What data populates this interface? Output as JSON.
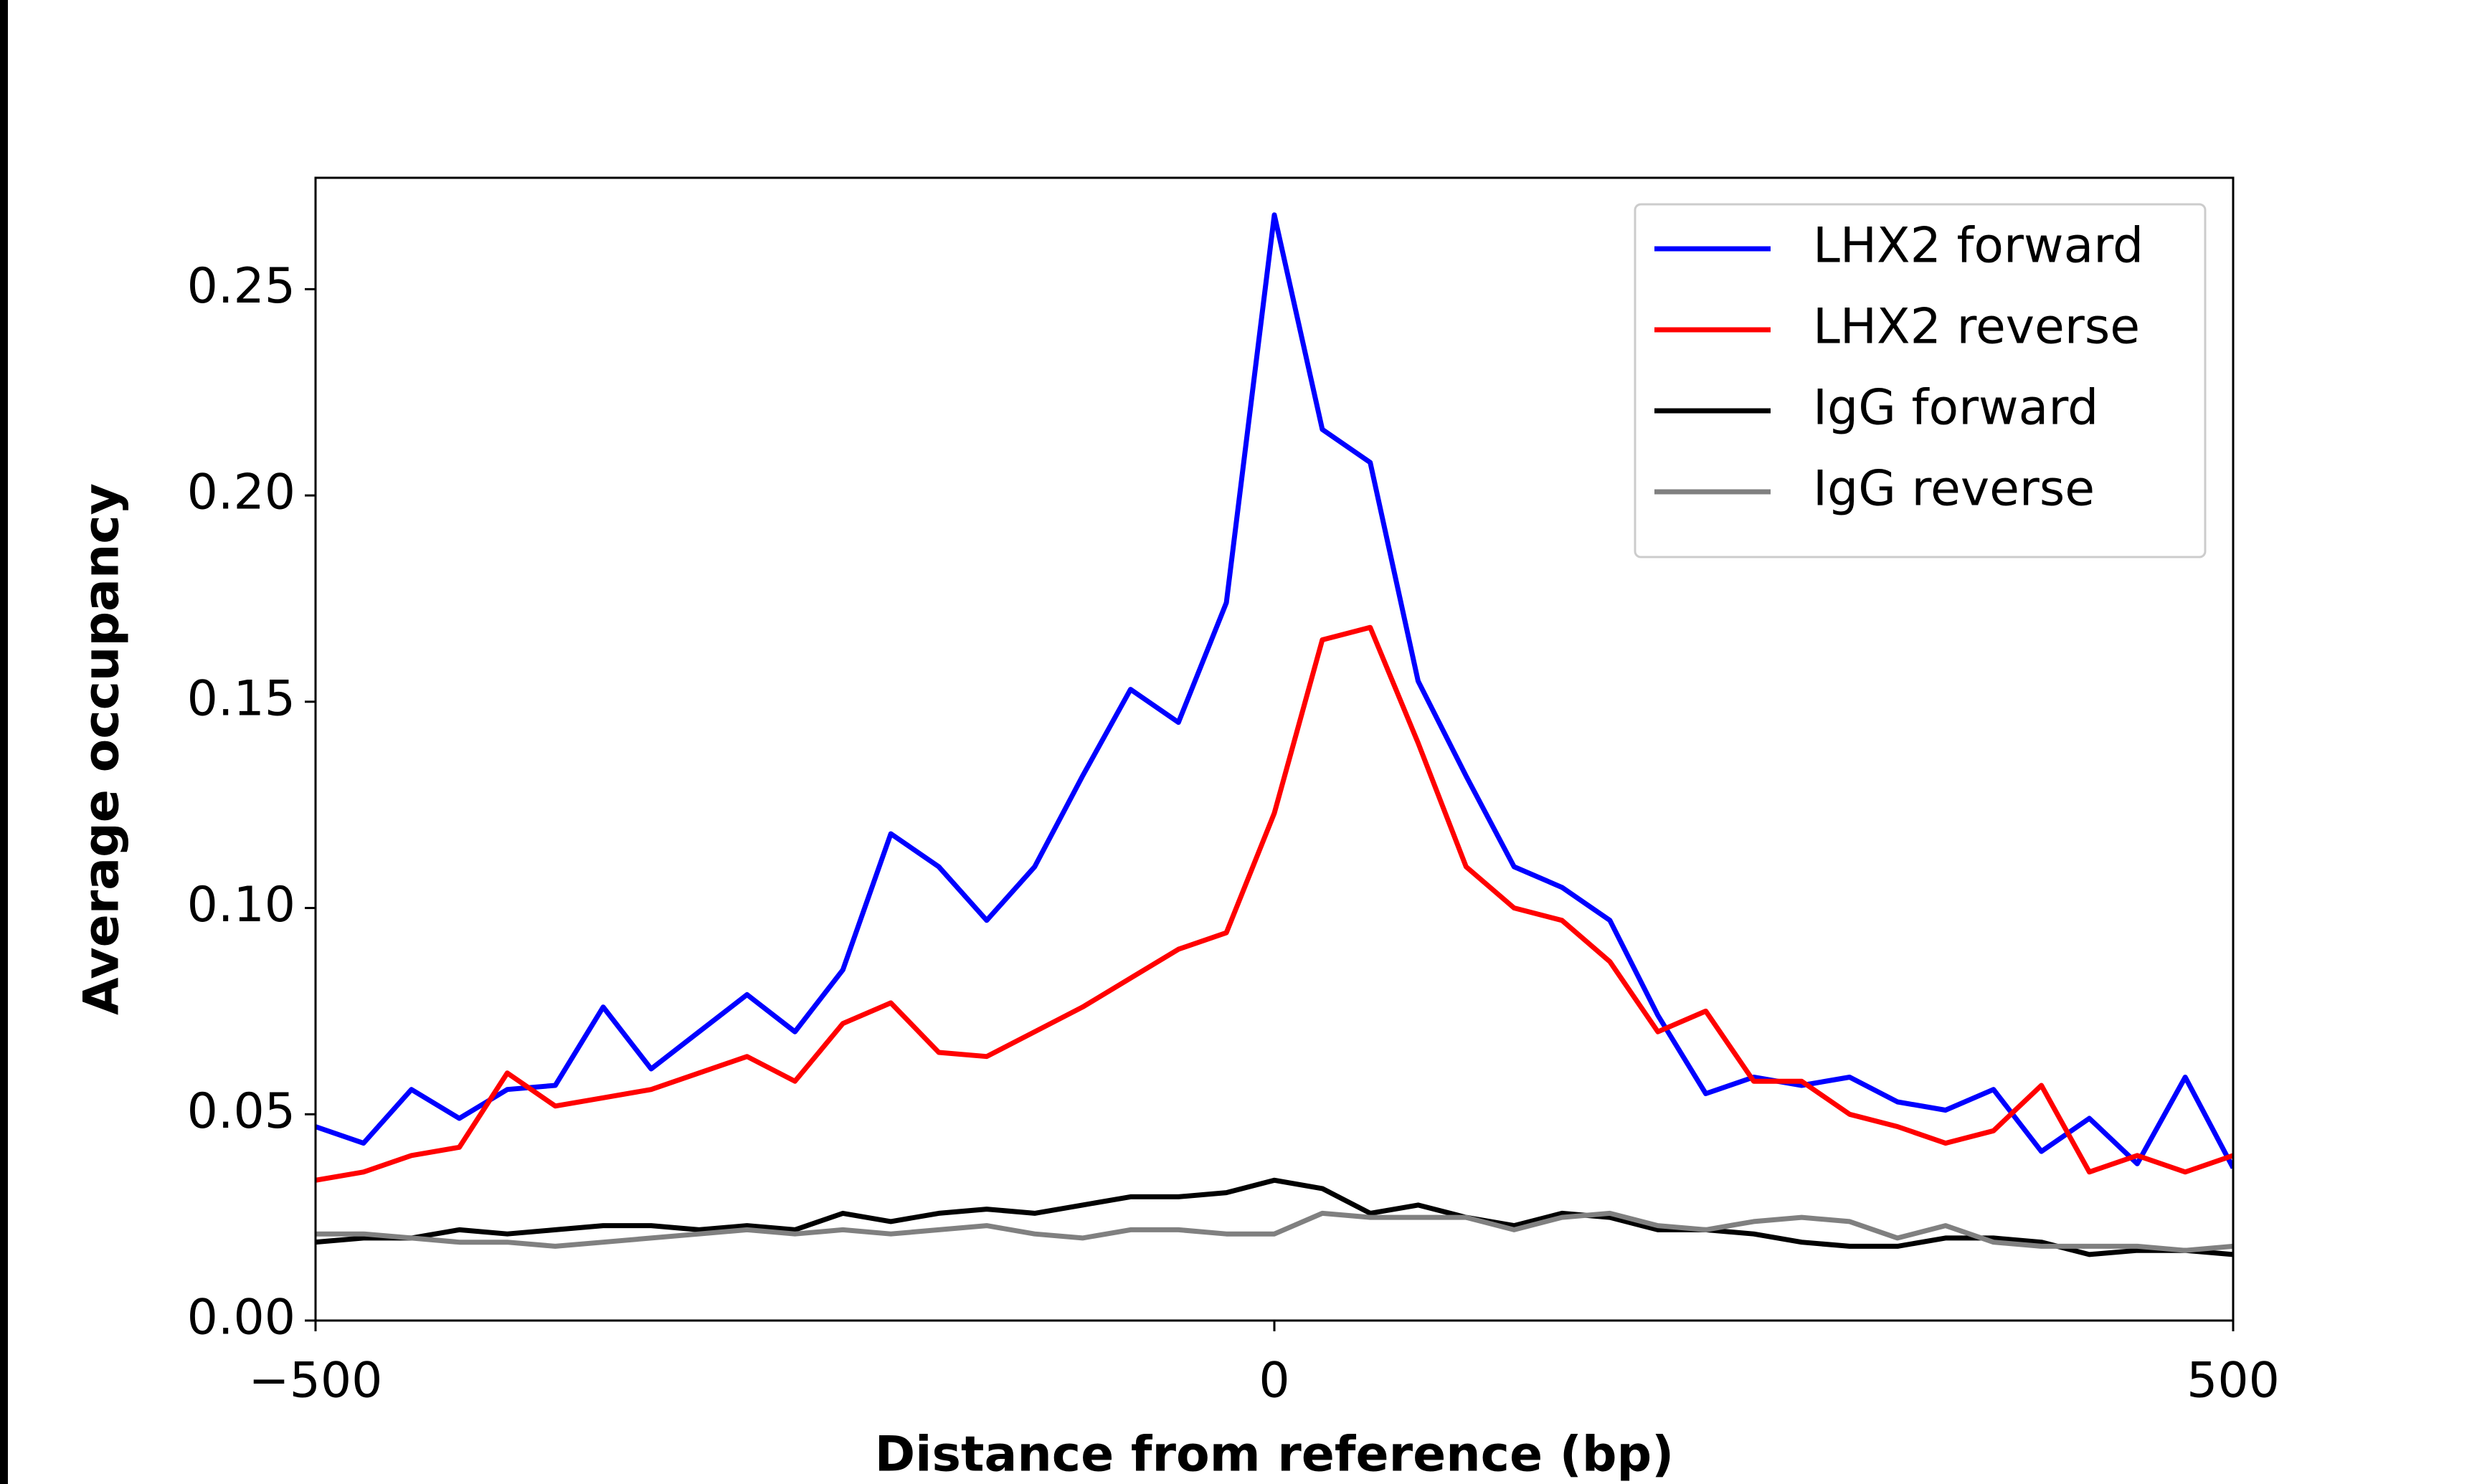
{
  "chart_data": {
    "type": "line",
    "xlabel": "Distance from reference (bp)",
    "ylabel": "Average occupancy",
    "x": [
      -500,
      -475,
      -450,
      -425,
      -400,
      -375,
      -350,
      -325,
      -300,
      -275,
      -250,
      -225,
      -200,
      -175,
      -150,
      -125,
      -100,
      -75,
      -50,
      -25,
      0,
      25,
      50,
      75,
      100,
      125,
      150,
      175,
      200,
      225,
      250,
      275,
      300,
      325,
      350,
      375,
      400,
      425,
      450,
      475,
      500
    ],
    "series": [
      {
        "name": "LHX2 forward",
        "color": "#0000ff",
        "values": [
          0.047,
          0.043,
          0.056,
          0.049,
          0.056,
          0.057,
          0.076,
          0.061,
          0.07,
          0.079,
          0.07,
          0.085,
          0.118,
          0.11,
          0.097,
          0.11,
          0.132,
          0.153,
          0.145,
          0.174,
          0.268,
          0.216,
          0.208,
          0.155,
          0.132,
          0.11,
          0.105,
          0.097,
          0.074,
          0.055,
          0.059,
          0.057,
          0.059,
          0.053,
          0.051,
          0.056,
          0.041,
          0.049,
          0.038,
          0.059,
          0.037
        ]
      },
      {
        "name": "LHX2 reverse",
        "color": "#ff0000",
        "values": [
          0.034,
          0.036,
          0.04,
          0.042,
          0.06,
          0.052,
          0.054,
          0.056,
          0.06,
          0.064,
          0.058,
          0.072,
          0.077,
          0.065,
          0.064,
          0.07,
          0.076,
          0.083,
          0.09,
          0.094,
          0.123,
          0.165,
          0.168,
          0.14,
          0.11,
          0.1,
          0.097,
          0.087,
          0.07,
          0.075,
          0.058,
          0.058,
          0.05,
          0.047,
          0.043,
          0.046,
          0.057,
          0.036,
          0.04,
          0.036,
          0.04
        ]
      },
      {
        "name": "IgG forward",
        "color": "#000000",
        "values": [
          0.019,
          0.02,
          0.02,
          0.022,
          0.021,
          0.022,
          0.023,
          0.023,
          0.022,
          0.023,
          0.022,
          0.026,
          0.024,
          0.026,
          0.027,
          0.026,
          0.028,
          0.03,
          0.03,
          0.031,
          0.034,
          0.032,
          0.026,
          0.028,
          0.025,
          0.023,
          0.026,
          0.025,
          0.022,
          0.022,
          0.021,
          0.019,
          0.018,
          0.018,
          0.02,
          0.02,
          0.019,
          0.016,
          0.017,
          0.017,
          0.016
        ]
      },
      {
        "name": "IgG reverse",
        "color": "#808080",
        "values": [
          0.021,
          0.021,
          0.02,
          0.019,
          0.019,
          0.018,
          0.019,
          0.02,
          0.021,
          0.022,
          0.021,
          0.022,
          0.021,
          0.022,
          0.023,
          0.021,
          0.02,
          0.022,
          0.022,
          0.021,
          0.021,
          0.026,
          0.025,
          0.025,
          0.025,
          0.022,
          0.025,
          0.026,
          0.023,
          0.022,
          0.024,
          0.025,
          0.024,
          0.02,
          0.023,
          0.019,
          0.018,
          0.018,
          0.018,
          0.017,
          0.018
        ]
      }
    ],
    "xlim": [
      -500,
      500
    ],
    "xticks": [
      {
        "value": -500,
        "label": "−500"
      },
      0,
      500
    ],
    "ylim": [
      0,
      0.277
    ],
    "yticks": [
      {
        "value": 0,
        "label": "0.00"
      },
      0.05,
      {
        "value": 0.1,
        "label": "0.10"
      },
      0.15,
      {
        "value": 0.2,
        "label": "0.20"
      },
      0.25
    ],
    "legend": "upper right",
    "grid": false
  }
}
